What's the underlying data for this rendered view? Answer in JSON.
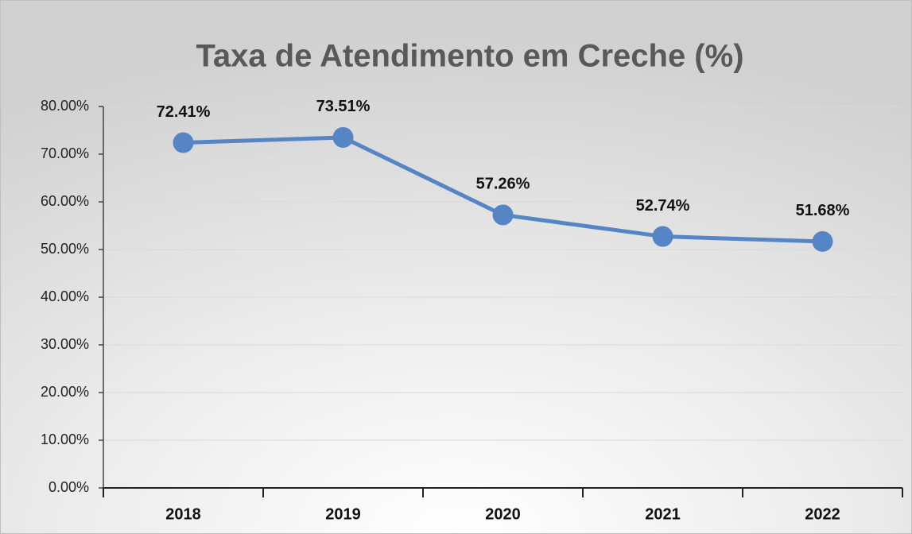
{
  "chart_data": {
    "type": "line",
    "title": "Taxa de Atendimento em Creche (%)",
    "categories": [
      "2018",
      "2019",
      "2020",
      "2021",
      "2022"
    ],
    "series": [
      {
        "name": "Taxa de Atendimento em Creche (%)",
        "color": "#5585c4",
        "values": [
          72.41,
          73.51,
          57.26,
          52.74,
          51.68
        ],
        "value_labels": [
          "72.41%",
          "73.51%",
          "57.26%",
          "52.74%",
          "51.68%"
        ]
      }
    ],
    "ylim": [
      0,
      80
    ],
    "yticks": [
      {
        "value": 0,
        "label": "0.00%"
      },
      {
        "value": 10,
        "label": "10.00%"
      },
      {
        "value": 20,
        "label": "20.00%"
      },
      {
        "value": 30,
        "label": "30.00%"
      },
      {
        "value": 40,
        "label": "40.00%"
      },
      {
        "value": 50,
        "label": "50.00%"
      },
      {
        "value": 60,
        "label": "60.00%"
      },
      {
        "value": 70,
        "label": "70.00%"
      },
      {
        "value": 80,
        "label": "80.00%"
      }
    ],
    "grid": true
  }
}
